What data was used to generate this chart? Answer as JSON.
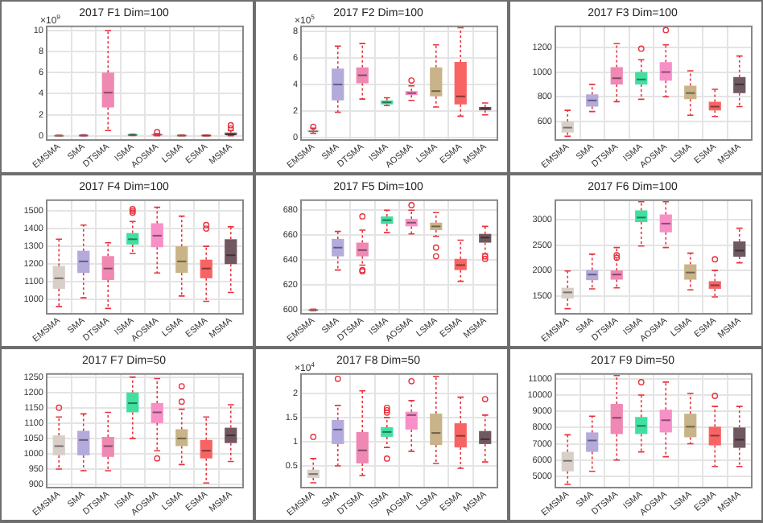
{
  "chart_data": [
    {
      "type": "box",
      "title": "2017 F1 Dim=100",
      "annotations": [
        "×10$^{9}$"
      ],
      "categories": [
        "EMSMA",
        "SMA",
        "DTSMA",
        "ISMA",
        "AOSMA",
        "LSMA",
        "ESMA",
        "MSMA"
      ],
      "colors": [
        "#d8d0c8",
        "#b4aadc",
        "#f088b4",
        "#40e0a0",
        "#f890c8",
        "#c8b488",
        "#f86464",
        "#705860"
      ],
      "ylim": [
        -0.4,
        10.4
      ],
      "yticks": [
        0,
        2,
        4,
        6,
        8,
        10
      ],
      "grid": true,
      "legend": false,
      "boxes": [
        {
          "low": 0,
          "q1": 0,
          "median": 0,
          "q3": 0.02,
          "high": 0.05
        },
        {
          "low": 0,
          "q1": 0,
          "median": 0.02,
          "q3": 0.05,
          "high": 0.1
        },
        {
          "low": 0.5,
          "q1": 2.7,
          "median": 4.1,
          "q3": 6,
          "high": 10
        },
        {
          "low": 0.02,
          "q1": 0.05,
          "median": 0.08,
          "q3": 0.1,
          "high": 0.15
        },
        {
          "low": 0,
          "q1": 0.05,
          "median": 0.1,
          "q3": 0.15,
          "high": 0.2,
          "outliers": [
            0.35
          ]
        },
        {
          "low": 0,
          "q1": 0,
          "median": 0.02,
          "q3": 0.04,
          "high": 0.08
        },
        {
          "low": 0,
          "q1": 0,
          "median": 0.02,
          "q3": 0.04,
          "high": 0.06
        },
        {
          "low": 0,
          "q1": 0.05,
          "median": 0.12,
          "q3": 0.3,
          "high": 0.5,
          "outliers": [
            0.7,
            1.0
          ]
        }
      ]
    },
    {
      "type": "box",
      "title": "2017 F2 Dim=100",
      "annotations": [
        "×10$^{5}$"
      ],
      "categories": [
        "EMSMA",
        "SMA",
        "DTSMA",
        "ISMA",
        "AOSMA",
        "LSMA",
        "ESMA",
        "MSMA"
      ],
      "colors": [
        "#d8d0c8",
        "#b4aadc",
        "#f088b4",
        "#40e0a0",
        "#f890c8",
        "#c8b488",
        "#f86464",
        "#705860"
      ],
      "ylim": [
        -0.2,
        8.4
      ],
      "yticks": [
        0,
        2,
        4,
        6,
        8
      ],
      "grid": true,
      "legend": false,
      "boxes": [
        {
          "low": 0.3,
          "q1": 0.4,
          "median": 0.45,
          "q3": 0.55,
          "high": 0.7,
          "outliers": [
            0.8
          ]
        },
        {
          "low": 1.9,
          "q1": 2.8,
          "median": 4.0,
          "q3": 5.2,
          "high": 6.9
        },
        {
          "low": 2.9,
          "q1": 4.1,
          "median": 4.7,
          "q3": 5.3,
          "high": 7.1
        },
        {
          "low": 2.4,
          "q1": 2.5,
          "median": 2.65,
          "q3": 2.8,
          "high": 3.0
        },
        {
          "low": 2.8,
          "q1": 3.2,
          "median": 3.35,
          "q3": 3.5,
          "high": 3.9,
          "outliers": [
            4.3
          ]
        },
        {
          "low": 2.3,
          "q1": 3.1,
          "median": 3.5,
          "q3": 5.3,
          "high": 7.0
        },
        {
          "low": 1.6,
          "q1": 2.5,
          "median": 3.1,
          "q3": 5.7,
          "high": 8.3
        },
        {
          "low": 1.7,
          "q1": 2.05,
          "median": 2.2,
          "q3": 2.3,
          "high": 2.6
        }
      ]
    },
    {
      "type": "box",
      "title": "2017 F3 Dim=100",
      "categories": [
        "EMSMA",
        "SMA",
        "DTSMA",
        "ISMA",
        "AOSMA",
        "LSMA",
        "ESMA",
        "MSMA"
      ],
      "colors": [
        "#d8d0c8",
        "#b4aadc",
        "#f088b4",
        "#40e0a0",
        "#f890c8",
        "#c8b488",
        "#f86464",
        "#705860"
      ],
      "ylim": [
        450,
        1370
      ],
      "yticks": [
        600,
        800,
        1000,
        1200
      ],
      "grid": true,
      "legend": false,
      "boxes": [
        {
          "low": 480,
          "q1": 510,
          "median": 550,
          "q3": 600,
          "high": 690
        },
        {
          "low": 680,
          "q1": 720,
          "median": 770,
          "q3": 820,
          "high": 900
        },
        {
          "low": 760,
          "q1": 900,
          "median": 950,
          "q3": 1040,
          "high": 1230
        },
        {
          "low": 780,
          "q1": 900,
          "median": 940,
          "q3": 1000,
          "high": 1100,
          "outliers": [
            1190
          ]
        },
        {
          "low": 800,
          "q1": 930,
          "median": 1000,
          "q3": 1080,
          "high": 1220,
          "outliers": [
            1340
          ]
        },
        {
          "low": 650,
          "q1": 780,
          "median": 830,
          "q3": 890,
          "high": 1010
        },
        {
          "low": 640,
          "q1": 690,
          "median": 720,
          "q3": 760,
          "high": 860
        },
        {
          "low": 720,
          "q1": 830,
          "median": 900,
          "q3": 960,
          "high": 1130
        }
      ]
    },
    {
      "type": "box",
      "title": "2017 F4 Dim=100",
      "categories": [
        "EMSMA",
        "SMA",
        "DTSMA",
        "ISMA",
        "AOSMA",
        "LSMA",
        "ESMA",
        "MSMA"
      ],
      "colors": [
        "#d8d0c8",
        "#b4aadc",
        "#f088b4",
        "#40e0a0",
        "#f890c8",
        "#c8b488",
        "#f86464",
        "#705860"
      ],
      "ylim": [
        920,
        1560
      ],
      "yticks": [
        1000,
        1100,
        1200,
        1300,
        1400,
        1500
      ],
      "grid": true,
      "legend": false,
      "boxes": [
        {
          "low": 960,
          "q1": 1060,
          "median": 1120,
          "q3": 1190,
          "high": 1340
        },
        {
          "low": 1010,
          "q1": 1150,
          "median": 1215,
          "q3": 1275,
          "high": 1420
        },
        {
          "low": 950,
          "q1": 1110,
          "median": 1175,
          "q3": 1245,
          "high": 1320
        },
        {
          "low": 1260,
          "q1": 1310,
          "median": 1340,
          "q3": 1375,
          "high": 1440,
          "outliers": [
            1490,
            1500,
            1510
          ]
        },
        {
          "low": 1150,
          "q1": 1295,
          "median": 1360,
          "q3": 1430,
          "high": 1520
        },
        {
          "low": 1020,
          "q1": 1150,
          "median": 1215,
          "q3": 1300,
          "high": 1470
        },
        {
          "low": 990,
          "q1": 1120,
          "median": 1175,
          "q3": 1225,
          "high": 1300,
          "outliers": [
            1400,
            1420
          ]
        },
        {
          "low": 1040,
          "q1": 1200,
          "median": 1250,
          "q3": 1340,
          "high": 1410
        }
      ]
    },
    {
      "type": "box",
      "title": "2017 F5 Dim=100",
      "categories": [
        "EMSMA",
        "SMA",
        "DTSMA",
        "ISMA",
        "AOSMA",
        "LSMA",
        "ESMA",
        "MSMA"
      ],
      "colors": [
        "#d8d0c8",
        "#b4aadc",
        "#f088b4",
        "#40e0a0",
        "#f890c8",
        "#c8b488",
        "#f86464",
        "#705860"
      ],
      "ylim": [
        597,
        688
      ],
      "yticks": [
        600,
        620,
        640,
        660,
        680
      ],
      "grid": true,
      "legend": false,
      "boxes": [
        {
          "low": 599.4,
          "q1": 599.6,
          "median": 600,
          "q3": 600.4,
          "high": 600.6
        },
        {
          "low": 632,
          "q1": 643,
          "median": 650,
          "q3": 657,
          "high": 663
        },
        {
          "low": 636,
          "q1": 643,
          "median": 648,
          "q3": 654,
          "high": 664,
          "outliers": [
            631,
            632,
            675
          ]
        },
        {
          "low": 662,
          "q1": 669,
          "median": 672,
          "q3": 675,
          "high": 680
        },
        {
          "low": 661,
          "q1": 667,
          "median": 670,
          "q3": 673,
          "high": 680,
          "outliers": [
            684
          ]
        },
        {
          "low": 659,
          "q1": 664,
          "median": 667,
          "q3": 670,
          "high": 678,
          "outliers": [
            650,
            643
          ]
        },
        {
          "low": 623,
          "q1": 632,
          "median": 636,
          "q3": 641,
          "high": 656
        },
        {
          "low": 645,
          "q1": 654,
          "median": 658,
          "q3": 661,
          "high": 667,
          "outliers": [
            641,
            643
          ]
        }
      ]
    },
    {
      "type": "box",
      "title": "2017 F6 Dim=100",
      "categories": [
        "EMSMA",
        "SMA",
        "DTSMA",
        "ISMA",
        "AOSMA",
        "LSMA",
        "ESMA",
        "MSMA"
      ],
      "colors": [
        "#d8d0c8",
        "#b4aadc",
        "#f088b4",
        "#40e0a0",
        "#f890c8",
        "#c8b488",
        "#f86464",
        "#705860"
      ],
      "ylim": [
        1150,
        3380
      ],
      "yticks": [
        1500,
        2000,
        2500,
        3000
      ],
      "grid": true,
      "legend": false,
      "boxes": [
        {
          "low": 1250,
          "q1": 1450,
          "median": 1570,
          "q3": 1660,
          "high": 1990
        },
        {
          "low": 1640,
          "q1": 1810,
          "median": 1920,
          "q3": 2010,
          "high": 2320
        },
        {
          "low": 1660,
          "q1": 1820,
          "median": 1920,
          "q3": 2000,
          "high": 2450,
          "outliers": [
            2250,
            2300
          ]
        },
        {
          "low": 2480,
          "q1": 2950,
          "median": 3040,
          "q3": 3180,
          "high": 3350
        },
        {
          "low": 2450,
          "q1": 2750,
          "median": 2920,
          "q3": 3100,
          "high": 3350
        },
        {
          "low": 1620,
          "q1": 1820,
          "median": 1960,
          "q3": 2120,
          "high": 2340
        },
        {
          "low": 1480,
          "q1": 1640,
          "median": 1710,
          "q3": 1790,
          "high": 2000,
          "outliers": [
            2220
          ]
        },
        {
          "low": 2150,
          "q1": 2270,
          "median": 2390,
          "q3": 2570,
          "high": 2830
        }
      ]
    },
    {
      "type": "box",
      "title": "2017 F7 Dim=50",
      "categories": [
        "EMSMA",
        "SMA",
        "DTSMA",
        "ISMA",
        "AOSMA",
        "LSMA",
        "ESMA",
        "MSMA"
      ],
      "colors": [
        "#d8d0c8",
        "#b4aadc",
        "#f088b4",
        "#40e0a0",
        "#f890c8",
        "#c8b488",
        "#f86464",
        "#705860"
      ],
      "ylim": [
        890,
        1260
      ],
      "yticks": [
        900,
        950,
        1000,
        1050,
        1100,
        1150,
        1200,
        1250
      ],
      "grid": true,
      "legend": false,
      "boxes": [
        {
          "low": 950,
          "q1": 995,
          "median": 1025,
          "q3": 1060,
          "high": 1120,
          "outliers": [
            1150
          ]
        },
        {
          "low": 945,
          "q1": 995,
          "median": 1045,
          "q3": 1075,
          "high": 1130
        },
        {
          "low": 945,
          "q1": 990,
          "median": 1025,
          "q3": 1055,
          "high": 1135
        },
        {
          "low": 1050,
          "q1": 1135,
          "median": 1165,
          "q3": 1200,
          "high": 1250
        },
        {
          "low": 1010,
          "q1": 1100,
          "median": 1135,
          "q3": 1165,
          "high": 1245,
          "outliers": [
            985
          ]
        },
        {
          "low": 965,
          "q1": 1025,
          "median": 1050,
          "q3": 1080,
          "high": 1145,
          "outliers": [
            1170,
            1220
          ]
        },
        {
          "low": 905,
          "q1": 985,
          "median": 1010,
          "q3": 1045,
          "high": 1120
        },
        {
          "low": 975,
          "q1": 1035,
          "median": 1060,
          "q3": 1085,
          "high": 1160
        }
      ]
    },
    {
      "type": "box",
      "title": "2017 F8 Dim=50",
      "annotations": [
        "×10$^{4}$"
      ],
      "categories": [
        "EMSMA",
        "SMA",
        "DTSMA",
        "ISMA",
        "AOSMA",
        "LSMA",
        "ESMA",
        "MSMA"
      ],
      "colors": [
        "#d8d0c8",
        "#b4aadc",
        "#f088b4",
        "#40e0a0",
        "#f890c8",
        "#c8b488",
        "#f86464",
        "#705860"
      ],
      "ylim": [
        0.05,
        2.4
      ],
      "yticks": [
        0.5,
        1,
        1.5,
        2
      ],
      "grid": true,
      "legend": false,
      "boxes": [
        {
          "low": 0.15,
          "q1": 0.25,
          "median": 0.33,
          "q3": 0.42,
          "high": 0.65,
          "outliers": [
            1.1
          ]
        },
        {
          "low": 0.5,
          "q1": 0.95,
          "median": 1.25,
          "q3": 1.45,
          "high": 1.75,
          "outliers": [
            2.3
          ]
        },
        {
          "low": 0.3,
          "q1": 0.55,
          "median": 0.82,
          "q3": 1.2,
          "high": 2.05
        },
        {
          "low": 0.88,
          "q1": 1.1,
          "median": 1.2,
          "q3": 1.3,
          "high": 1.5,
          "outliers": [
            0.65,
            1.6,
            1.65,
            1.7
          ]
        },
        {
          "low": 0.8,
          "q1": 1.25,
          "median": 1.55,
          "q3": 1.62,
          "high": 1.85,
          "outliers": [
            2.25
          ]
        },
        {
          "low": 0.55,
          "q1": 0.93,
          "median": 1.18,
          "q3": 1.58,
          "high": 2.35
        },
        {
          "low": 0.45,
          "q1": 0.88,
          "median": 1.12,
          "q3": 1.38,
          "high": 1.92
        },
        {
          "low": 0.58,
          "q1": 0.95,
          "median": 1.05,
          "q3": 1.22,
          "high": 1.55,
          "outliers": [
            1.88
          ]
        }
      ]
    },
    {
      "type": "box",
      "title": "2017 F9 Dim=50",
      "categories": [
        "EMSMA",
        "SMA",
        "DTSMA",
        "ISMA",
        "AOSMA",
        "LSMA",
        "ESMA",
        "MSMA"
      ],
      "colors": [
        "#d8d0c8",
        "#b4aadc",
        "#f088b4",
        "#40e0a0",
        "#f890c8",
        "#c8b488",
        "#f86464",
        "#705860"
      ],
      "ylim": [
        4300,
        11300
      ],
      "yticks": [
        5000,
        6000,
        7000,
        8000,
        9000,
        10000,
        11000
      ],
      "grid": true,
      "legend": false,
      "boxes": [
        {
          "low": 4500,
          "q1": 5300,
          "median": 5950,
          "q3": 6500,
          "high": 7550
        },
        {
          "low": 5300,
          "q1": 6500,
          "median": 7200,
          "q3": 7700,
          "high": 8700
        },
        {
          "low": 6000,
          "q1": 7600,
          "median": 8600,
          "q3": 9450,
          "high": 11200
        },
        {
          "low": 6500,
          "q1": 7600,
          "median": 8100,
          "q3": 8650,
          "high": 10000,
          "outliers": [
            10800
          ]
        },
        {
          "low": 6200,
          "q1": 7700,
          "median": 8450,
          "q3": 9100,
          "high": 10800
        },
        {
          "low": 7000,
          "q1": 7400,
          "median": 8050,
          "q3": 8850,
          "high": 10100
        },
        {
          "low": 5600,
          "q1": 6900,
          "median": 7500,
          "q3": 8050,
          "high": 9300,
          "outliers": [
            9950
          ]
        },
        {
          "low": 5600,
          "q1": 6750,
          "median": 7250,
          "q3": 8000,
          "high": 9300
        }
      ]
    }
  ]
}
